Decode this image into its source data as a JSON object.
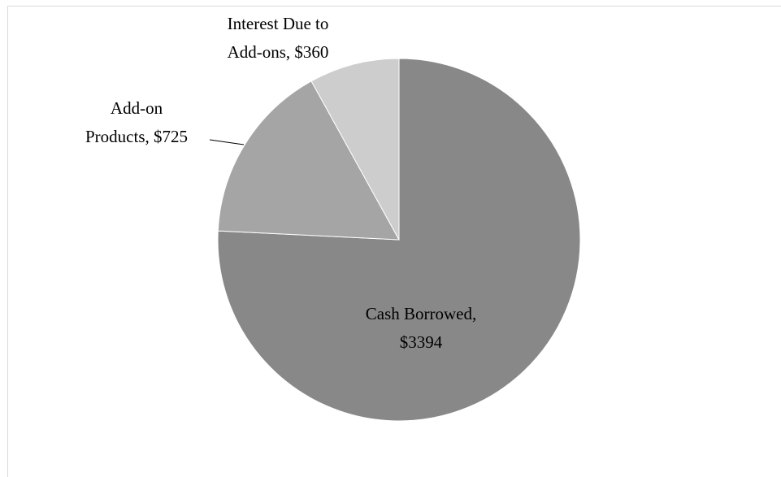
{
  "chart_data": {
    "type": "pie",
    "title": "",
    "slices": [
      {
        "line1": "Cash Borrowed,",
        "line2": "$3394",
        "value": 3394,
        "color": "#888888"
      },
      {
        "line1": "Add-on",
        "line2": "Products, $725",
        "value": 725,
        "color": "#a5a5a5"
      },
      {
        "line1": "Interest Due to",
        "line2": "Add-ons, $360",
        "value": 360,
        "color": "#cdcdcd"
      }
    ],
    "start_angle": "12 o'clock",
    "direction": "clockwise",
    "slice_order": [
      "Cash Borrowed",
      "Add-on Products",
      "Interest Due to Add-ons"
    ],
    "legend": "none",
    "border_color": "#d9d9d9"
  }
}
